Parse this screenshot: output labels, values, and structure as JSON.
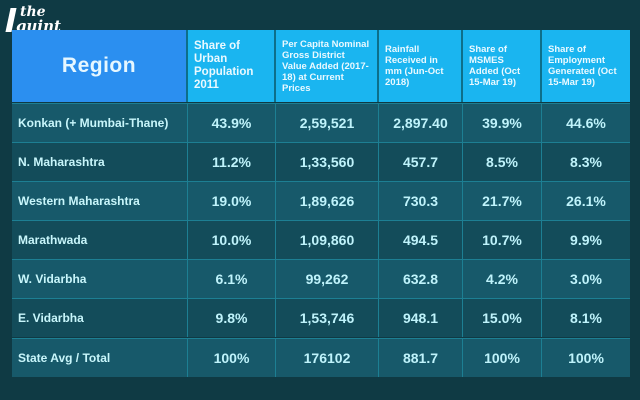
{
  "logo": {
    "line1": "the",
    "line2": "quint"
  },
  "header": {
    "region": "Region",
    "columns": [
      "Share of Urban Population 2011",
      "Per Capita Nominal Gross District Value Added (2017-18) at Current Prices",
      "Rainfall Received in mm (Jun-Oct 2018)",
      "Share of MSMES Added (Oct 15-Mar 19)",
      "Share of Employment Generated (Oct 15-Mar 19)"
    ]
  },
  "rows": [
    {
      "region": "Konkan (+ Mumbai-Thane)",
      "values": [
        "43.9%",
        "2,59,521",
        "2,897.40",
        "39.9%",
        "44.6%"
      ]
    },
    {
      "region": "N. Maharashtra",
      "values": [
        "11.2%",
        "1,33,560",
        "457.7",
        "8.5%",
        "8.3%"
      ]
    },
    {
      "region": "Western Maharashtra",
      "values": [
        "19.0%",
        "1,89,626",
        "730.3",
        "21.7%",
        "26.1%"
      ]
    },
    {
      "region": "Marathwada",
      "values": [
        "10.0%",
        "1,09,860",
        "494.5",
        "10.7%",
        "9.9%"
      ]
    },
    {
      "region": "W. Vidarbha",
      "values": [
        "6.1%",
        "99,262",
        "632.8",
        "4.2%",
        "3.0%"
      ]
    },
    {
      "region": "E. Vidarbha",
      "values": [
        "9.8%",
        "1,53,746",
        "948.1",
        "15.0%",
        "8.1%"
      ]
    },
    {
      "region": "State Avg / Total",
      "values": [
        "100%",
        "176102",
        "881.7",
        "100%",
        "100%"
      ]
    }
  ]
}
